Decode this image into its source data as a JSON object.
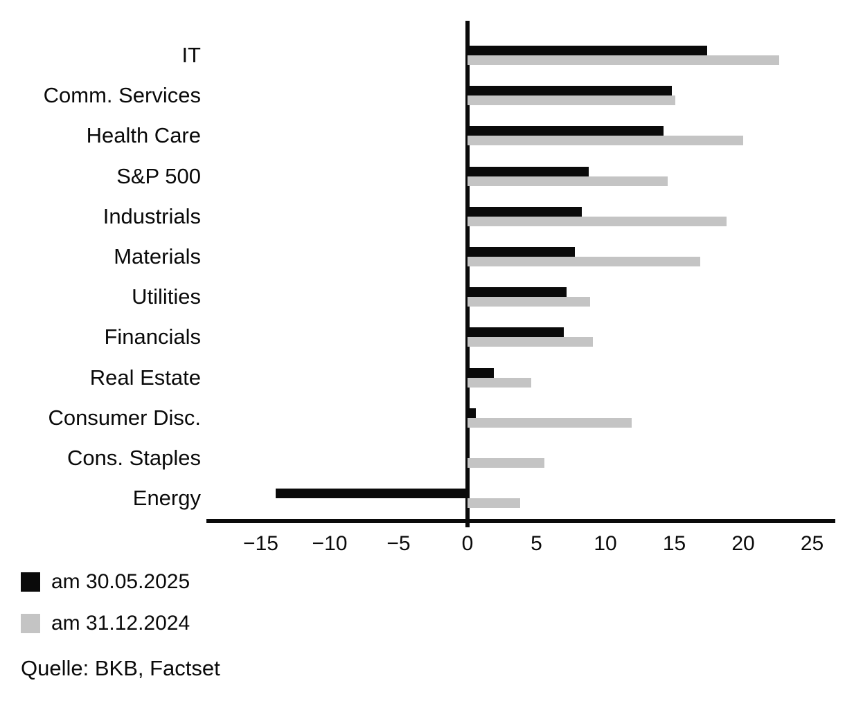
{
  "chart_data": {
    "type": "bar",
    "orientation": "horizontal",
    "title": "",
    "xlabel": "",
    "ylabel": "",
    "grid": false,
    "legend_position": "bottom-left",
    "xlim": [
      -18.9,
      26.7
    ],
    "categories": [
      "IT",
      "Comm. Services",
      "Health Care",
      "S&P 500",
      "Industrials",
      "Materials",
      "Utilities",
      "Financials",
      "Real Estate",
      "Consumer Disc.",
      "Cons. Staples",
      "Energy"
    ],
    "series": [
      {
        "name": "am 30.05.2025",
        "color": "#0a0a0a",
        "values": [
          17.4,
          14.8,
          14.2,
          8.8,
          8.3,
          7.8,
          7.2,
          7.0,
          1.9,
          0.6,
          0.0,
          -13.9
        ]
      },
      {
        "name": "am 31.12.2024",
        "color": "#c4c4c4",
        "values": [
          22.6,
          15.1,
          20.0,
          14.5,
          18.8,
          16.9,
          8.9,
          9.1,
          4.6,
          11.9,
          5.6,
          3.8
        ]
      }
    ],
    "xticks": [
      {
        "label": "−15",
        "value": -15
      },
      {
        "label": "−10",
        "value": -10
      },
      {
        "label": "−5",
        "value": -5
      },
      {
        "label": "0",
        "value": 0
      },
      {
        "label": "5",
        "value": 5
      },
      {
        "label": "10",
        "value": 10
      },
      {
        "label": "15",
        "value": 15
      },
      {
        "label": "20",
        "value": 20
      },
      {
        "label": "25",
        "value": 25
      }
    ],
    "source": "Quelle: BKB, Factset"
  }
}
